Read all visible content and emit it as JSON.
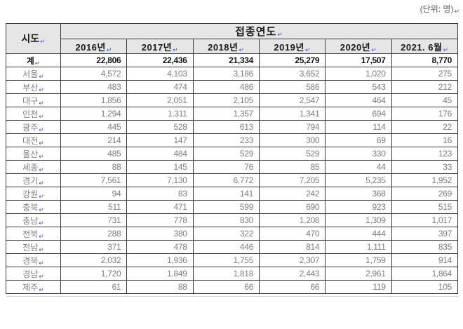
{
  "unit_note": "(단위: 명)",
  "paragraph_mark": "↵",
  "table": {
    "corner_header": "시도",
    "group_header": "접종연도",
    "year_headers": [
      "2016년",
      "2017년",
      "2018년",
      "2019년",
      "2020년",
      "2021. 6월"
    ],
    "rows": [
      {
        "label": "계",
        "total": true,
        "values": [
          "22,806",
          "22,436",
          "21,334",
          "25,279",
          "17,507",
          "8,770"
        ]
      },
      {
        "label": "서울",
        "total": false,
        "values": [
          "4,572",
          "4,103",
          "3,186",
          "3,652",
          "1,020",
          "275"
        ]
      },
      {
        "label": "부산",
        "total": false,
        "values": [
          "483",
          "474",
          "486",
          "586",
          "543",
          "212"
        ]
      },
      {
        "label": "대구",
        "total": false,
        "values": [
          "1,856",
          "2,051",
          "2,105",
          "2,547",
          "464",
          "45"
        ]
      },
      {
        "label": "인천",
        "total": false,
        "values": [
          "1,294",
          "1,311",
          "1,357",
          "1,341",
          "694",
          "176"
        ]
      },
      {
        "label": "광주",
        "total": false,
        "values": [
          "445",
          "528",
          "613",
          "794",
          "114",
          "22"
        ]
      },
      {
        "label": "대전",
        "total": false,
        "values": [
          "214",
          "147",
          "233",
          "300",
          "69",
          "16"
        ]
      },
      {
        "label": "울산",
        "total": false,
        "values": [
          "485",
          "484",
          "529",
          "529",
          "330",
          "123"
        ]
      },
      {
        "label": "세종",
        "total": false,
        "values": [
          "88",
          "145",
          "76",
          "85",
          "44",
          "33"
        ]
      },
      {
        "label": "경기",
        "total": false,
        "values": [
          "7,561",
          "7,130",
          "6,772",
          "7,205",
          "5,235",
          "1,952"
        ]
      },
      {
        "label": "강원",
        "total": false,
        "values": [
          "94",
          "83",
          "141",
          "242",
          "368",
          "269"
        ]
      },
      {
        "label": "충북",
        "total": false,
        "values": [
          "511",
          "471",
          "599",
          "690",
          "923",
          "515"
        ]
      },
      {
        "label": "충남",
        "total": false,
        "values": [
          "731",
          "778",
          "830",
          "1,208",
          "1,309",
          "1,017"
        ]
      },
      {
        "label": "전북",
        "total": false,
        "values": [
          "288",
          "380",
          "322",
          "470",
          "444",
          "397"
        ]
      },
      {
        "label": "전남",
        "total": false,
        "values": [
          "371",
          "478",
          "446",
          "814",
          "1,111",
          "835"
        ]
      },
      {
        "label": "경북",
        "total": false,
        "values": [
          "2,032",
          "1,936",
          "1,755",
          "2,307",
          "1,759",
          "914"
        ]
      },
      {
        "label": "경남",
        "total": false,
        "values": [
          "1,720",
          "1,849",
          "1,818",
          "2,443",
          "2,961",
          "1,864"
        ]
      },
      {
        "label": "제주",
        "total": false,
        "values": [
          "61",
          "88",
          "66",
          "66",
          "119",
          "105"
        ]
      }
    ]
  },
  "colors": {
    "header_bg": "#e6e6e6",
    "border": "#3c3c3c",
    "data_text": "#7f7f7f",
    "total_text": "#141414",
    "paragraph_mark": "#3b5bd0",
    "unit_note_text": "#5f5f5f"
  }
}
